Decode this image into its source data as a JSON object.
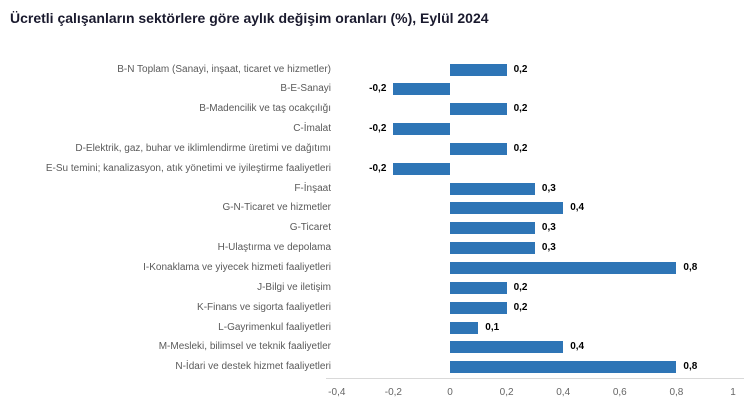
{
  "chart_data": {
    "type": "bar",
    "orientation": "horizontal",
    "title": "Ücretli çalışanların sektörlere göre aylık değişim oranları (%), Eylül 2024",
    "categories": [
      "B-N Toplam (Sanayi, inşaat, ticaret ve hizmetler)",
      "B-E-Sanayi",
      "B-Madencilik ve taş ocakçılığı",
      "C-İmalat",
      "D-Elektrik, gaz, buhar ve iklimlendirme üretimi ve dağıtımı",
      "E-Su temini; kanalizasyon, atık yönetimi ve iyileştirme faaliyetleri",
      "F-İnşaat",
      "G-N-Ticaret ve hizmetler",
      "G-Ticaret",
      "H-Ulaştırma ve depolama",
      "I-Konaklama ve yiyecek hizmeti faaliyetleri",
      "J-Bilgi ve iletişim",
      "K-Finans ve sigorta faaliyetleri",
      "L-Gayrimenkul faaliyetleri",
      "M-Mesleki, bilimsel ve teknik faaliyetler",
      "N-İdari ve destek hizmet faaliyetleri"
    ],
    "values": [
      0.2,
      -0.2,
      0.2,
      -0.2,
      0.2,
      -0.2,
      0.3,
      0.4,
      0.3,
      0.3,
      0.8,
      0.2,
      0.2,
      0.1,
      0.4,
      0.8
    ],
    "value_labels": [
      "0,2",
      "-0,2",
      "0,2",
      "-0,2",
      "0,2",
      "-0,2",
      "0,3",
      "0,4",
      "0,3",
      "0,3",
      "0,8",
      "0,2",
      "0,2",
      "0,1",
      "0,4",
      "0,8"
    ],
    "xlim": [
      -0.4,
      1
    ],
    "x_ticks": [
      -0.4,
      -0.2,
      0,
      0.2,
      0.4,
      0.6,
      0.8,
      1
    ],
    "x_tick_labels": [
      "-0,4",
      "-0,2",
      "0",
      "0,2",
      "0,4",
      "0,6",
      "0,8",
      "1"
    ],
    "bar_color": "#2e75b6",
    "grid": false,
    "legend": false
  },
  "colors": {
    "bar": "#2e75b6",
    "title_text": "#1a1a2e",
    "category_text": "#5a5a5a",
    "tick_text": "#666666",
    "value_text": "#000000",
    "axis_line": "#d9d9d9",
    "background": "#ffffff"
  }
}
